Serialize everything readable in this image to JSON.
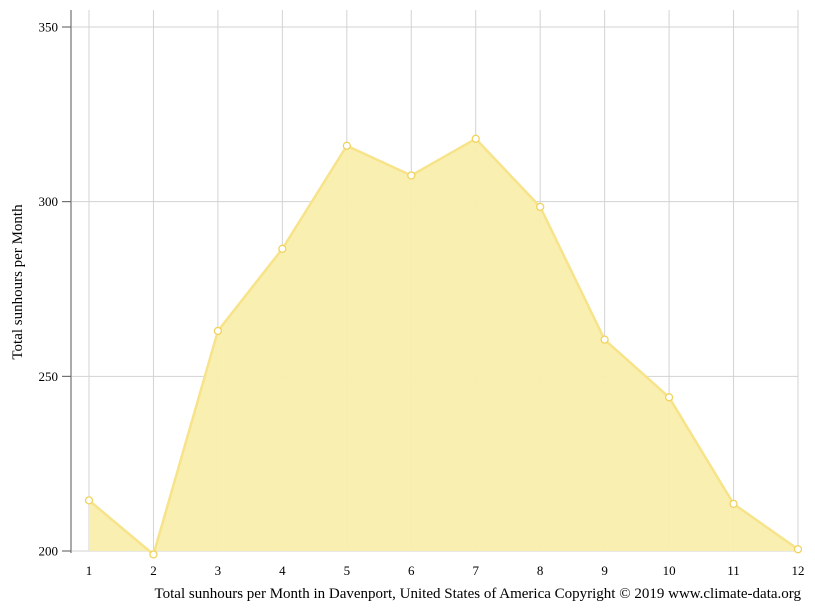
{
  "chart_data": {
    "type": "area",
    "ylabel": "Total sunhours per Month",
    "caption": "Total sunhours per Month in Davenport, United States of America Copyright © 2019 www.climate-data.org",
    "x": [
      1,
      2,
      3,
      4,
      5,
      6,
      7,
      8,
      9,
      10,
      11,
      12
    ],
    "x_tick_labels": [
      "1",
      "2",
      "3",
      "4",
      "5",
      "6",
      "7",
      "8",
      "9",
      "10",
      "11",
      "12"
    ],
    "series": [
      {
        "values": [
          214.5,
          199.0,
          263.0,
          286.5,
          316.0,
          307.5,
          318.0,
          298.5,
          260.5,
          244.0,
          213.5,
          200.5
        ]
      }
    ],
    "ylim": [
      200,
      350
    ],
    "y_ticks": [
      200,
      250,
      300,
      350
    ],
    "y_tick_labels": [
      "200",
      "250",
      "300",
      "350"
    ],
    "grid": true,
    "colors": {
      "fill": "#f9eeac",
      "line": "#f7e38a",
      "marker_stroke": "#f0d25e",
      "grid": "#d3d3d3",
      "axis": "#555555"
    }
  }
}
